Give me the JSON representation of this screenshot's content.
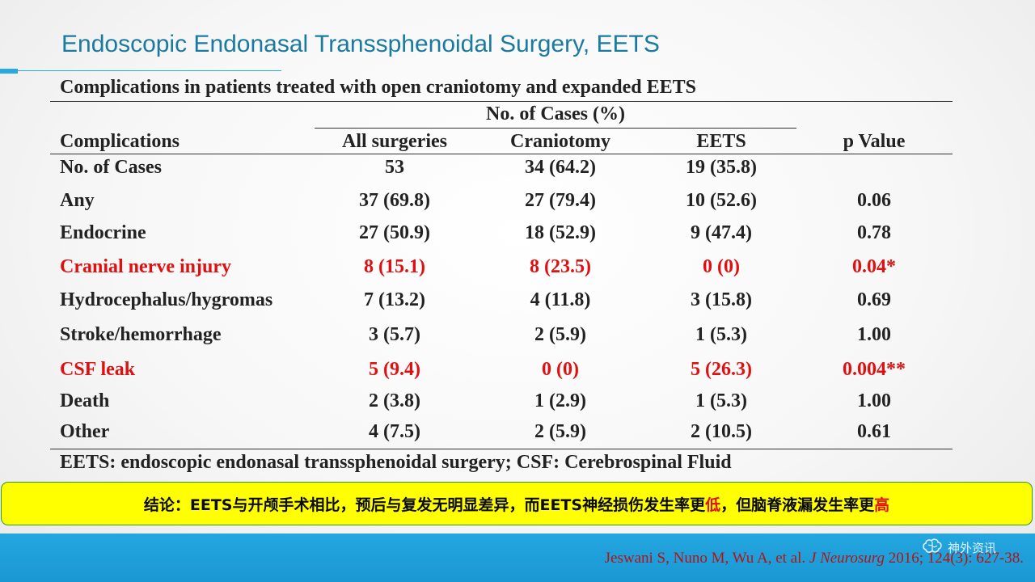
{
  "slide": {
    "title": "Endoscopic Endonasal Transsphenoidal Surgery, EETS"
  },
  "table": {
    "caption": "Complications in patients treated with open craniotomy and expanded EETS",
    "group_header": "No. of Cases (%)",
    "columns": [
      "Complications",
      "All surgeries",
      "Craniotomy",
      "EETS",
      "p Value"
    ],
    "rows": [
      {
        "name": "No. of Cases",
        "all": "53",
        "cran": "34 (64.2)",
        "eets": "19 (35.8)",
        "p": "",
        "highlight": false
      },
      {
        "name": "Any",
        "all": "37 (69.8)",
        "cran": "27 (79.4)",
        "eets": "10 (52.6)",
        "p": "0.06",
        "highlight": false
      },
      {
        "name": "Endocrine",
        "all": "27 (50.9)",
        "cran": "18 (52.9)",
        "eets": "9 (47.4)",
        "p": "0.78",
        "highlight": false
      },
      {
        "name": "Cranial nerve injury",
        "all": "8 (15.1)",
        "cran": "8 (23.5)",
        "eets": "0 (0)",
        "p": "0.04*",
        "highlight": true
      },
      {
        "name": "Hydrocephalus/hygromas",
        "all": "7 (13.2)",
        "cran": "4 (11.8)",
        "eets": "3 (15.8)",
        "p": "0.69",
        "highlight": false
      },
      {
        "name": "Stroke/hemorrhage",
        "all": "3 (5.7)",
        "cran": "2 (5.9)",
        "eets": "1 (5.3)",
        "p": "1.00",
        "highlight": false
      },
      {
        "name": "CSF leak",
        "all": "5 (9.4)",
        "cran": "0 (0)",
        "eets": "5 (26.3)",
        "p": "0.004**",
        "highlight": true
      },
      {
        "name": "Death",
        "all": "2 (3.8)",
        "cran": "1 (2.9)",
        "eets": "1 (5.3)",
        "p": "1.00",
        "highlight": false
      },
      {
        "name": "Other",
        "all": "4 (7.5)",
        "cran": "2 (5.9)",
        "eets": "2 (10.5)",
        "p": "0.61",
        "highlight": false
      }
    ],
    "footnote": "EETS: endoscopic endonasal transsphenoidal surgery; CSF: Cerebrospinal Fluid"
  },
  "conclusion": {
    "part1": "结论：EETS与开颅手术相比，预后与复发无明显差异，而EETS神经损伤发生率更",
    "highlight1": "低",
    "part2": "，但脑脊液漏发生率更",
    "highlight2": "高"
  },
  "citation": {
    "authors": "Jeswani S, Nuno M, Wu A, et al. ",
    "journal": "J Neurosurg",
    "details": " 2016; 124(3): 627-38."
  },
  "watermark": {
    "text": "神外资讯",
    "icon": "brain-logo-icon"
  },
  "colors": {
    "title": "#1b7aa0",
    "highlight_red": "#e01010",
    "conclusion_bg": "#ffff00",
    "bottom_bar": "#1a98d4"
  }
}
